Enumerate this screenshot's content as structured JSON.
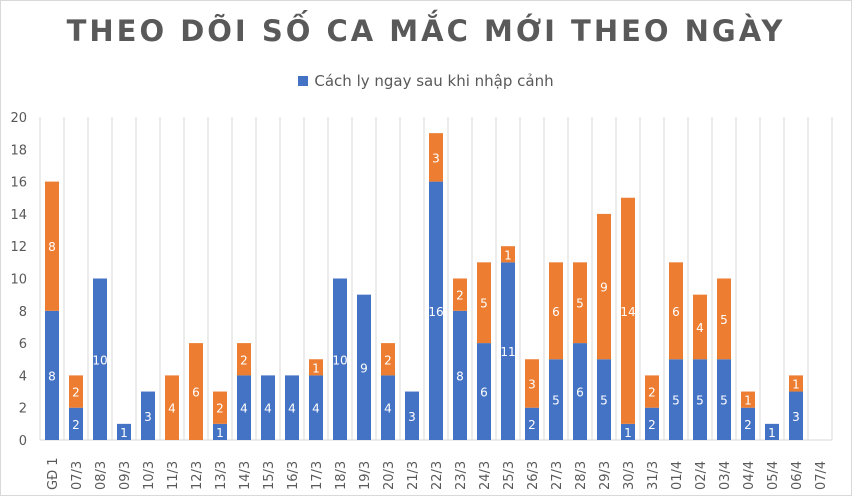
{
  "chart_data": {
    "type": "bar",
    "stacked": true,
    "title": "THEO DÕI SỐ CA MẮC MỚI THEO NGÀY",
    "xlabel": "",
    "ylabel": "",
    "ylim": [
      0,
      20
    ],
    "yticks": [
      0,
      2,
      4,
      6,
      8,
      10,
      12,
      14,
      16,
      18,
      20
    ],
    "grid": "vertical",
    "legend_position": "top",
    "categories": [
      "GĐ 1",
      "07/3",
      "08/3",
      "09/3",
      "10/3",
      "11/3",
      "12/3",
      "13/3",
      "14/3",
      "15/3",
      "16/3",
      "17/3",
      "18/3",
      "19/3",
      "20/3",
      "21/3",
      "22/3",
      "23/3",
      "24/3",
      "25/3",
      "26/3",
      "27/3",
      "28/3",
      "29/3",
      "30/3",
      "31/3",
      "01/4",
      "02/4",
      "03/4",
      "04/4",
      "05/4",
      "06/4",
      "07/4"
    ],
    "series": [
      {
        "name": "Cách ly ngay sau khi nhập cảnh",
        "color": "#4472c4",
        "in_legend": true,
        "values": [
          8,
          2,
          10,
          1,
          3,
          0,
          0,
          1,
          4,
          4,
          4,
          4,
          10,
          9,
          4,
          3,
          16,
          8,
          6,
          11,
          2,
          5,
          6,
          5,
          1,
          2,
          5,
          5,
          5,
          2,
          1,
          3,
          0
        ]
      },
      {
        "name": "",
        "color": "#ed7d31",
        "in_legend": false,
        "values": [
          8,
          2,
          0,
          0,
          0,
          4,
          6,
          2,
          2,
          0,
          0,
          1,
          0,
          0,
          2,
          0,
          3,
          2,
          5,
          1,
          3,
          6,
          5,
          9,
          14,
          2,
          6,
          4,
          5,
          1,
          0,
          1,
          0
        ]
      }
    ]
  }
}
